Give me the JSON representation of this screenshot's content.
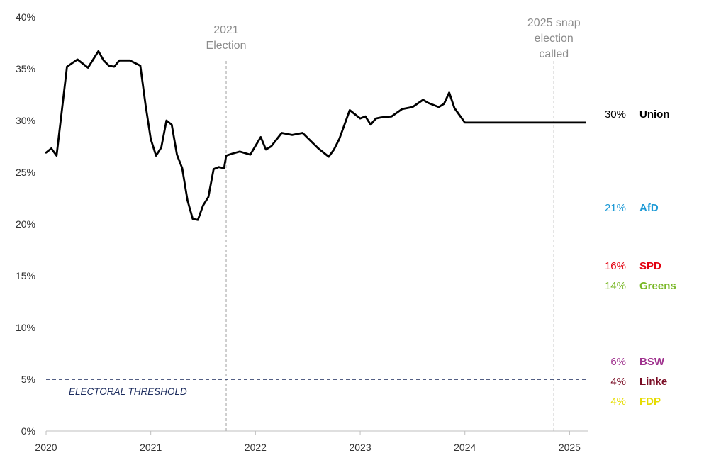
{
  "chart_data": {
    "type": "line",
    "title": "",
    "xlabel": "",
    "ylabel": "",
    "xlim": [
      2020.0,
      2025.18
    ],
    "ylim": [
      0,
      40
    ],
    "x_ticks": [
      {
        "value": 2020,
        "label": "2020"
      },
      {
        "value": 2021,
        "label": "2021"
      },
      {
        "value": 2022,
        "label": "2022"
      },
      {
        "value": 2023,
        "label": "2023"
      },
      {
        "value": 2024,
        "label": "2024"
      },
      {
        "value": 2025,
        "label": "2025"
      }
    ],
    "y_ticks": [
      {
        "value": 0,
        "label": "0%"
      },
      {
        "value": 5,
        "label": "5%"
      },
      {
        "value": 10,
        "label": "10%"
      },
      {
        "value": 15,
        "label": "15%"
      },
      {
        "value": 20,
        "label": "20%"
      },
      {
        "value": 25,
        "label": "25%"
      },
      {
        "value": 30,
        "label": "30%"
      },
      {
        "value": 35,
        "label": "35%"
      },
      {
        "value": 40,
        "label": "40%"
      }
    ],
    "threshold": {
      "value": 5,
      "label": "ELECTORAL THRESHOLD",
      "color": "#1a2a5c"
    },
    "annotations": [
      {
        "x": 2021.72,
        "lines": [
          "2021",
          "Election"
        ]
      },
      {
        "x": 2024.85,
        "lines": [
          "2025 snap",
          "election",
          "called"
        ]
      }
    ],
    "series": [
      {
        "name": "Union",
        "label": "30%",
        "color": "#000000",
        "value": 30,
        "x": [
          2020.0,
          2020.05,
          2020.1,
          2020.2,
          2020.3,
          2020.4,
          2020.5,
          2020.55,
          2020.6,
          2020.65,
          2020.7,
          2020.8,
          2020.9,
          2020.95,
          2021.0,
          2021.05,
          2021.1,
          2021.15,
          2021.2,
          2021.25,
          2021.3,
          2021.35,
          2021.4,
          2021.45,
          2021.5,
          2021.55,
          2021.6,
          2021.65,
          2021.7,
          2021.72,
          2021.78,
          2021.85,
          2021.95,
          2022.05,
          2022.1,
          2022.15,
          2022.25,
          2022.35,
          2022.45,
          2022.55,
          2022.6,
          2022.7,
          2022.75,
          2022.8,
          2022.9,
          2023.0,
          2023.05,
          2023.1,
          2023.15,
          2023.2,
          2023.3,
          2023.4,
          2023.5,
          2023.6,
          2023.65,
          2023.75,
          2023.8,
          2023.85,
          2023.9,
          2024.0,
          2024.05,
          2024.1,
          2024.2,
          2024.3,
          2024.4,
          2024.5,
          2024.6,
          2024.7,
          2024.75,
          2024.8,
          2024.85,
          2024.9,
          2025.0,
          2025.05,
          2025.1,
          2025.15
        ],
        "values": [
          26.9,
          27.3,
          26.6,
          35.2,
          35.9,
          35.1,
          36.7,
          35.8,
          35.3,
          35.2,
          35.8,
          35.8,
          35.3,
          31.5,
          28.2,
          26.6,
          27.4,
          30.0,
          29.6,
          26.7,
          25.4,
          22.3,
          20.5,
          20.4,
          21.8,
          22.6,
          25.3,
          25.5,
          25.4,
          26.6,
          26.8,
          27.0,
          26.7,
          28.4,
          27.2,
          27.5,
          28.8,
          28.6,
          28.8,
          27.8,
          27.3,
          26.5,
          27.2,
          28.2,
          31.0,
          30.2,
          30.4,
          29.6,
          30.2,
          30.3,
          30.4,
          31.1,
          31.3,
          32.0,
          31.7,
          31.3,
          31.6,
          32.7,
          31.2,
          29.8,
          29.8,
          29.8,
          29.8,
          29.8,
          29.8,
          29.8,
          29.8,
          29.8,
          29.8,
          29.8,
          29.8,
          29.8,
          29.8,
          29.8,
          29.8,
          29.8
        ]
      },
      {
        "name": "AfD",
        "label": "21%",
        "color": "#1d9ad6",
        "value": 21,
        "x": [],
        "values": []
      },
      {
        "name": "SPD",
        "label": "16%",
        "color": "#e3000f",
        "value": 16,
        "x": [],
        "values": []
      },
      {
        "name": "Greens",
        "label": "14%",
        "color": "#7ab828",
        "value": 14,
        "x": [],
        "values": []
      },
      {
        "name": "BSW",
        "label": "6%",
        "color": "#a0338f",
        "value": 6,
        "x": [],
        "values": []
      },
      {
        "name": "Linke",
        "label": "4%",
        "color": "#7a0d25",
        "value": 4,
        "x": [],
        "values": []
      },
      {
        "name": "FDP",
        "label": "4%",
        "color": "#e6dc00",
        "value": 4,
        "x": [],
        "values": []
      }
    ]
  }
}
